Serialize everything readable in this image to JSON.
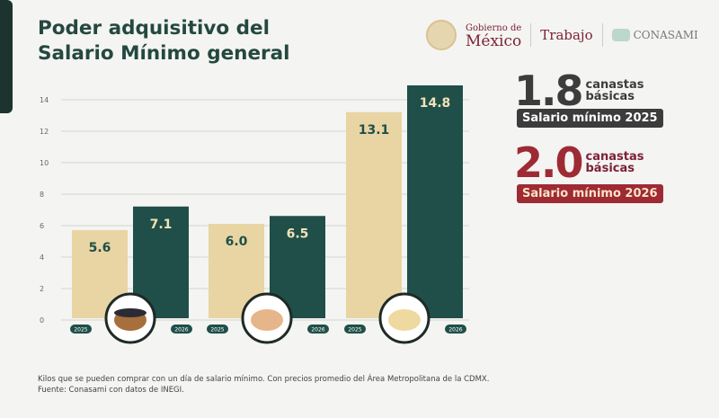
{
  "title_line1": "Poder adquisitivo del",
  "title_line2": "Salario Mínimo general",
  "logos": {
    "gob_top": "Gobierno de",
    "gob_bottom": "México",
    "trabajo": "Trabajo",
    "conasami": "CONASAMI"
  },
  "stats": [
    {
      "value": "1.8",
      "unit_line1": "canastas",
      "unit_line2": "básicas",
      "label": "Salario mínimo 2025",
      "color": "#3c3c3c"
    },
    {
      "value": "2.0",
      "unit_line1": "canastas",
      "unit_line2": "básicas",
      "label": "Salario mínimo 2026",
      "color": "#9e2a34"
    }
  ],
  "chart_data": {
    "type": "bar",
    "categories": [
      "",
      "",
      " "
    ],
    "category_icons": [
      "black-beans-bowl-icon",
      "eggs-bowl-icon",
      "tortillas-icon"
    ],
    "series": [
      {
        "name": "2025",
        "values": [
          5.6,
          6.0,
          13.1
        ],
        "color": "#e8d5a3"
      },
      {
        "name": "2026",
        "values": [
          7.1,
          6.5,
          14.8
        ],
        "color": "#1f4f48"
      }
    ],
    "yticks": [
      "0",
      "2",
      "4",
      "6",
      "8",
      "10",
      "12",
      "14"
    ],
    "ylim": [
      0,
      14.8
    ],
    "grid": true
  },
  "footnote_line1": "Kilos que se pueden comprar con un día de salario mínimo. Con precios promedio del Área Metropolitana de la CDMX.",
  "footnote_line2": "Fuente: Conasami con datos de INEGI."
}
